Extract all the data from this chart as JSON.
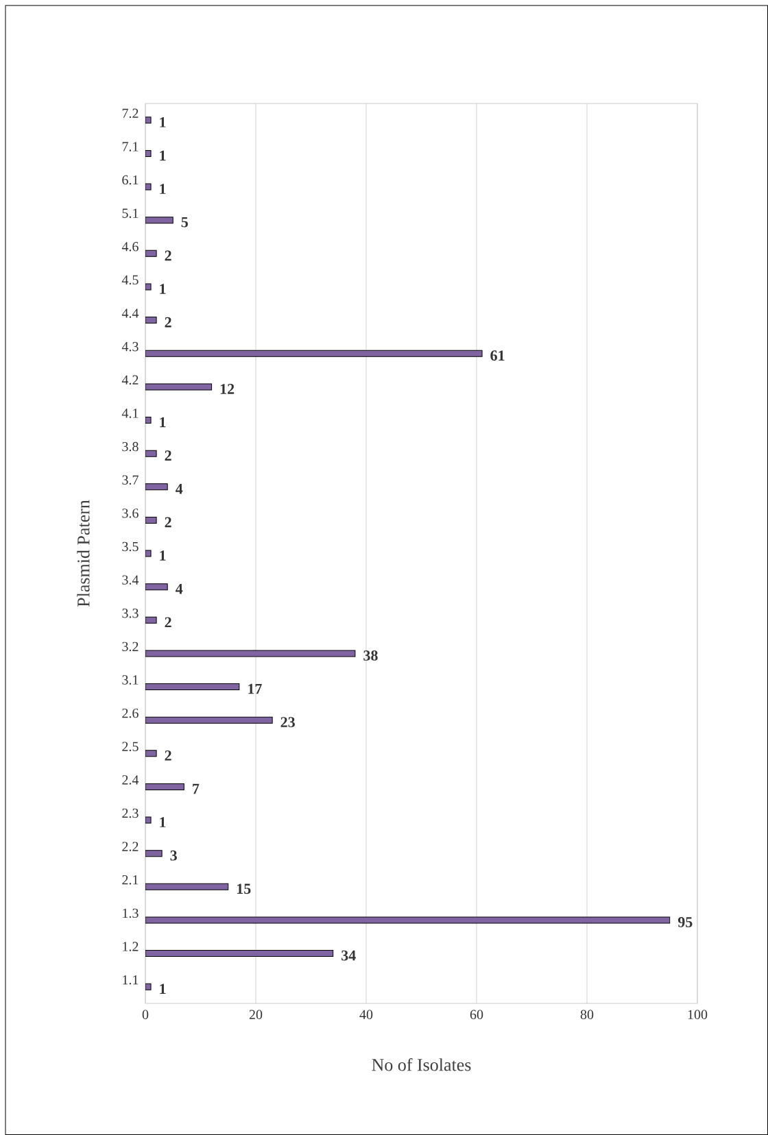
{
  "chart_data": {
    "type": "bar",
    "orientation": "horizontal",
    "xlabel": "No of Isolates",
    "ylabel": "Plasmid Patern",
    "categories": [
      "7.2",
      "7.1",
      "6.1",
      "5.1",
      "4.6",
      "4.5",
      "4.4",
      "4.3",
      "4.2",
      "4.1",
      "3.8",
      "3.7",
      "3.6",
      "3.5",
      "3.4",
      "3.3",
      "3.2",
      "3.1",
      "2.6",
      "2.5",
      "2.4",
      "2.3",
      "2.2",
      "2.1",
      "1.3",
      "1.2",
      "1.1"
    ],
    "values": [
      1,
      1,
      1,
      5,
      2,
      1,
      2,
      61,
      12,
      1,
      2,
      4,
      2,
      1,
      4,
      2,
      38,
      17,
      23,
      2,
      7,
      1,
      3,
      15,
      95,
      34,
      1
    ],
    "color": "#8064a2",
    "xlim": [
      0,
      100
    ],
    "xticks": [
      0,
      20,
      40,
      60,
      80,
      100
    ],
    "grid": "x",
    "data_labels": true
  }
}
